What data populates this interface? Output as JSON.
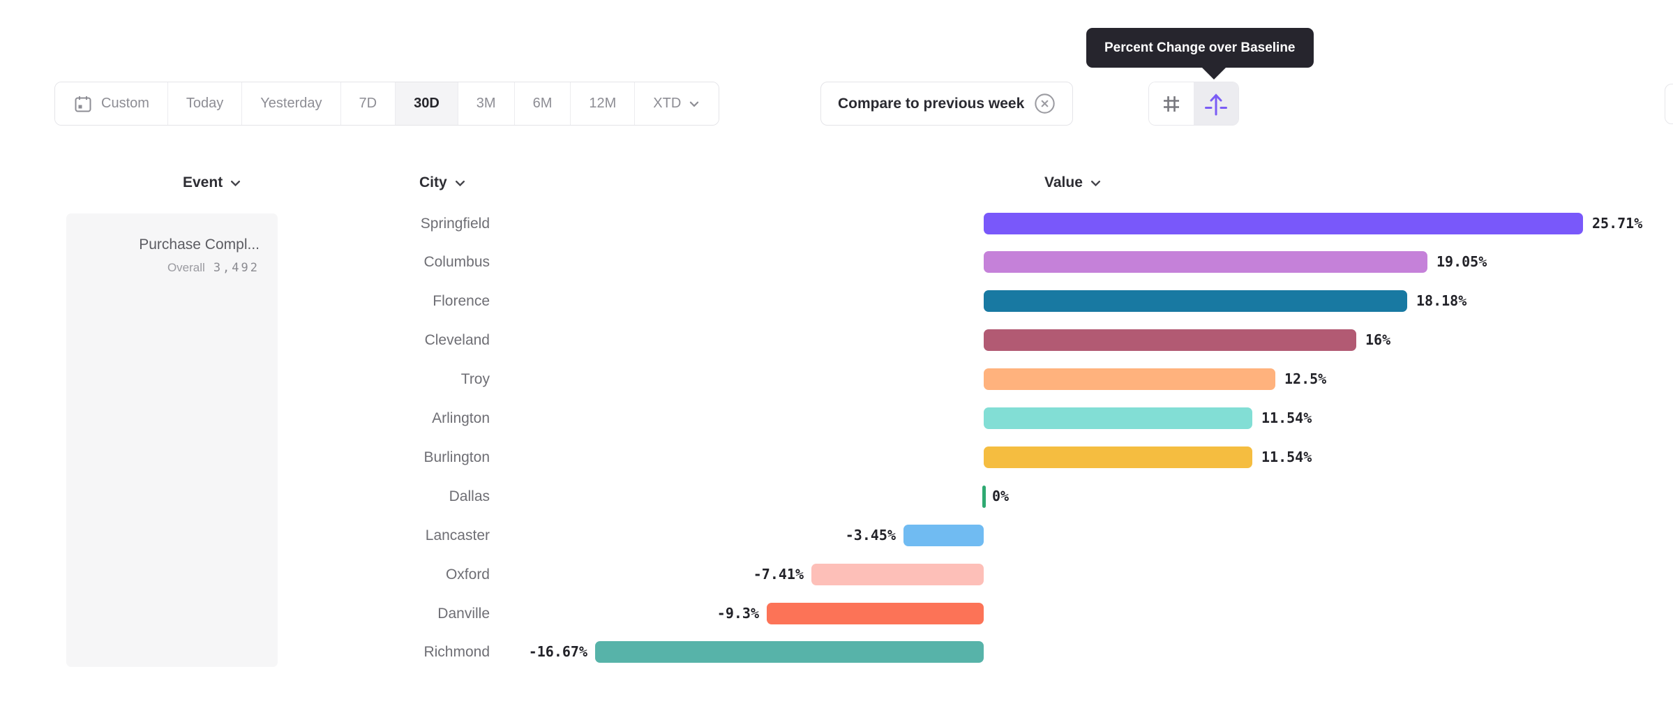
{
  "colors": {
    "accent": "#7a5cf5",
    "tooltip_bg": "#26252d",
    "selected_segment_bg": "#f4f4f6",
    "zero_tick": "#2fa972"
  },
  "tooltip": {
    "text": "Percent Change over Baseline"
  },
  "toolbar": {
    "date_ranges": [
      {
        "label": "Custom",
        "icon": "calendar-icon",
        "selected": false
      },
      {
        "label": "Today",
        "selected": false
      },
      {
        "label": "Yesterday",
        "selected": false
      },
      {
        "label": "7D",
        "selected": false
      },
      {
        "label": "30D",
        "selected": true
      },
      {
        "label": "3M",
        "selected": false
      },
      {
        "label": "6M",
        "selected": false
      },
      {
        "label": "12M",
        "selected": false
      },
      {
        "label": "XTD",
        "selected": false,
        "has_chevron": true
      }
    ],
    "compare_button": {
      "label": "Compare to previous week",
      "icon": "circle-x-icon"
    },
    "view_toggle": [
      {
        "icon": "grid-hash-icon",
        "selected": false
      },
      {
        "icon": "baseline-arrow-icon",
        "selected": true,
        "tooltip": "Percent Change over Baseline"
      }
    ]
  },
  "table": {
    "headers": [
      {
        "label": "Event"
      },
      {
        "label": "City"
      },
      {
        "label": "Value"
      }
    ]
  },
  "event_panel": {
    "event_name": "Purchase Compl...",
    "metric_label": "Overall",
    "metric_value": "3,492"
  },
  "chart_data": {
    "type": "bar",
    "orientation": "horizontal",
    "unit": "%",
    "baseline": 0,
    "value_column": "Value",
    "categories": [
      "Springfield",
      "Columbus",
      "Florence",
      "Cleveland",
      "Troy",
      "Arlington",
      "Burlington",
      "Dallas",
      "Lancaster",
      "Oxford",
      "Danville",
      "Richmond"
    ],
    "values": [
      25.71,
      19.05,
      18.18,
      16,
      12.5,
      11.54,
      11.54,
      0,
      -3.45,
      -7.41,
      -9.3,
      -16.67
    ],
    "labels": [
      "25.71%",
      "19.05%",
      "18.18%",
      "16%",
      "12.5%",
      "11.54%",
      "11.54%",
      "0%",
      "-3.45%",
      "-7.41%",
      "-9.3%",
      "-16.67%"
    ],
    "bar_colors": [
      "#7958fa",
      "#c581d9",
      "#1879a2",
      "#b25a73",
      "#ffb27d",
      "#82ded5",
      "#f5bd40",
      "#2fa972",
      "#70bbf2",
      "#fdbfb8",
      "#fc7357",
      "#57b3a9"
    ]
  }
}
